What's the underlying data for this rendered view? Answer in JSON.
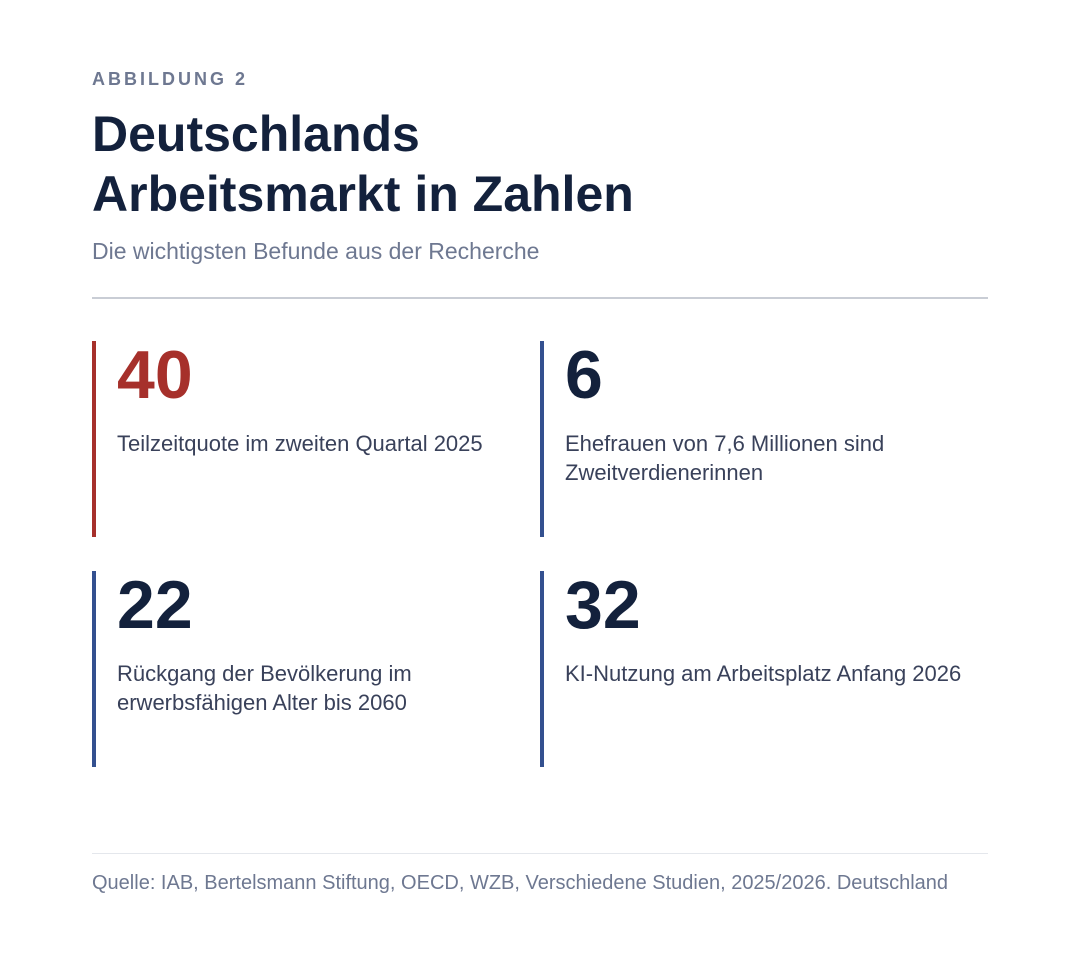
{
  "header": {
    "kicker": "ABBILDUNG 2",
    "title_line1": "Deutschlands",
    "title_line2": "Arbeitsmarkt in Zahlen",
    "subtitle": "Die wichtigsten Befunde aus der Recherche"
  },
  "chart_data": {
    "type": "table",
    "title": "Deutschlands Arbeitsmarkt in Zahlen",
    "subtitle": "Die wichtigsten Befunde aus der Recherche",
    "items": [
      {
        "value": "40",
        "label": "Teilzeitquote im zweiten Quartal 2025",
        "accent": "#a6302b"
      },
      {
        "value": "6",
        "label": "Ehefrauen von 7,6 Millionen sind Zweitverdienerinnen",
        "accent": "#33508f"
      },
      {
        "value": "22",
        "label": "Rückgang der Bevölkerung im erwerbsfähigen Alter bis 2060",
        "accent": "#33508f"
      },
      {
        "value": "32",
        "label": "KI-Nutzung am Arbeitsplatz Anfang 2026",
        "accent": "#33508f"
      }
    ]
  },
  "footer": {
    "source": "Quelle: IAB, Bertelsmann Stiftung, OECD, WZB, Verschiedene Studien, 2025/2026. Deutschland"
  },
  "colors": {
    "highlight": "#a6302b",
    "accent": "#33508f",
    "text_dark": "#13213c",
    "text_muted": "#6e7891"
  }
}
